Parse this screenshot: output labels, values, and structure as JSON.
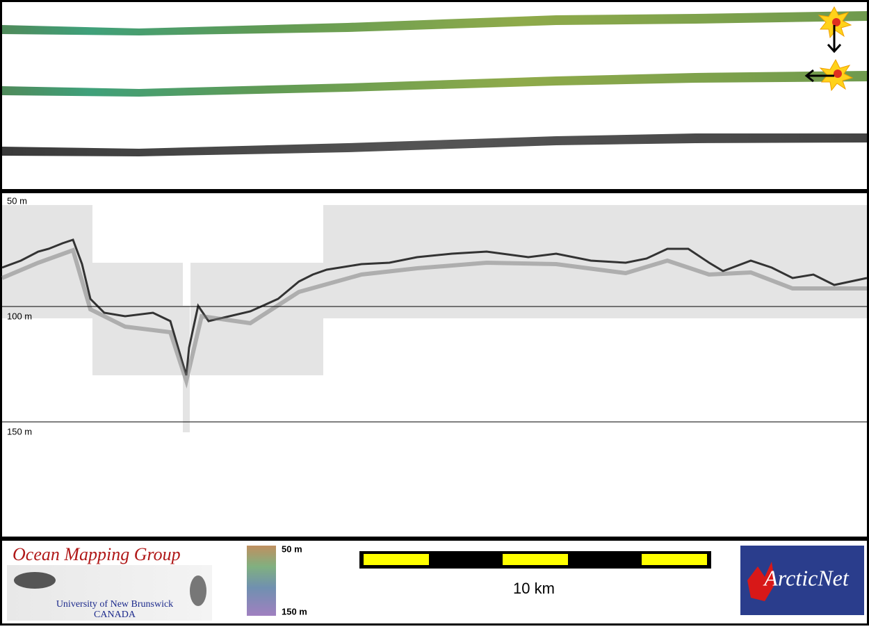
{
  "profile": {
    "depth_ticks": [
      {
        "value": 50,
        "label": "50 m"
      },
      {
        "value": 100,
        "label": "100 m"
      },
      {
        "value": 150,
        "label": "150 m"
      }
    ]
  },
  "footer": {
    "logo_title": "Ocean Mapping Group",
    "logo_university": "University of New Brunswick",
    "logo_country": "CANADA",
    "colorbar_top": "50 m",
    "colorbar_bottom": "150 m",
    "scale_label": "10 km",
    "partner": "ArcticNet"
  }
}
